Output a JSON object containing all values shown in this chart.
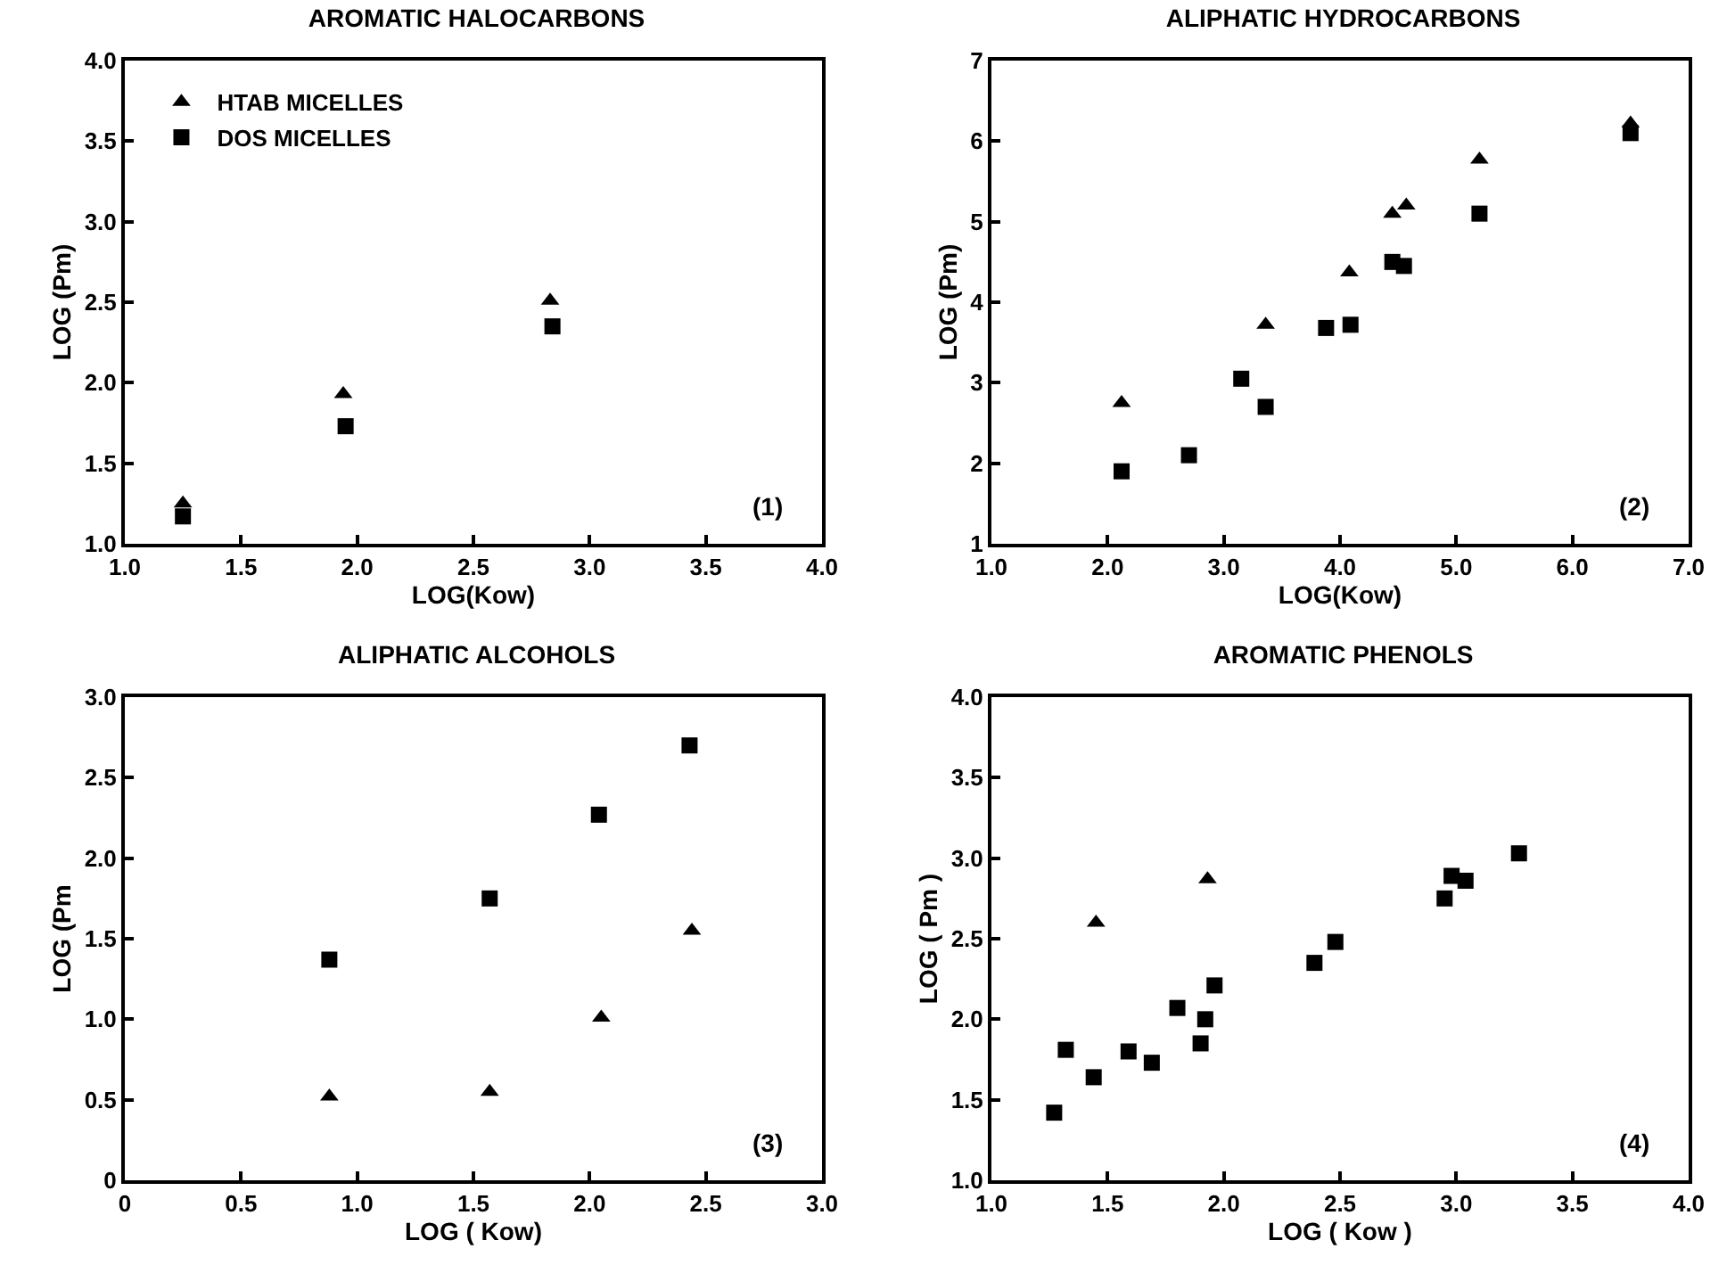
{
  "chart_data": [
    {
      "type": "scatter",
      "title": "AROMATIC HALOCARBONS",
      "xlabel": "LOG(Kow)",
      "ylabel": "LOG (Pm)",
      "annotations": [
        "(1)"
      ],
      "legend": "top left",
      "grid": false,
      "xlim": [
        1,
        4
      ],
      "xticks": [
        {
          "value": 1,
          "label": "1.0"
        },
        1.5,
        {
          "value": 2,
          "label": "2.0"
        },
        2.5,
        {
          "value": 3,
          "label": "3.0"
        },
        3.5,
        {
          "value": 4,
          "label": "4.0"
        }
      ],
      "ylim": [
        1,
        4
      ],
      "yticks": [
        {
          "value": 1,
          "label": "1.0"
        },
        1.5,
        {
          "value": 2,
          "label": "2.0"
        },
        2.5,
        {
          "value": 3,
          "label": "3.0"
        },
        3.5,
        {
          "value": 4,
          "label": "4.0"
        }
      ],
      "series": [
        {
          "name": "HTAB MICELLES",
          "color": "#000000",
          "marker": "triangle",
          "x": [
            1.25,
            1.94,
            2.83
          ],
          "values": [
            1.25,
            1.93,
            2.51
          ]
        },
        {
          "name": "DOS MICELLES",
          "color": "#000000",
          "marker": "square",
          "x": [
            1.25,
            1.95,
            2.84
          ],
          "values": [
            1.17,
            1.73,
            2.35
          ]
        }
      ]
    },
    {
      "type": "scatter",
      "title": "ALIPHATIC HYDROCARBONS",
      "xlabel": "LOG(Kow)",
      "ylabel": "LOG (Pm)",
      "annotations": [
        "(2)"
      ],
      "grid": false,
      "xlim": [
        1,
        7
      ],
      "xticks": [
        {
          "value": 1,
          "label": "1.0"
        },
        {
          "value": 2,
          "label": "2.0"
        },
        {
          "value": 3,
          "label": "3.0"
        },
        {
          "value": 4,
          "label": "4.0"
        },
        {
          "value": 5,
          "label": "5.0"
        },
        {
          "value": 6,
          "label": "6.0"
        },
        {
          "value": 7,
          "label": "7.0"
        }
      ],
      "ylim": [
        1,
        7
      ],
      "yticks": [
        1,
        2,
        3,
        4,
        5,
        6,
        7
      ],
      "series": [
        {
          "color": "#000000",
          "marker": "triangle",
          "x": [
            2.12,
            3.36,
            4.08,
            4.45,
            4.57,
            5.2,
            6.5
          ],
          "values": [
            2.75,
            3.72,
            4.37,
            5.1,
            5.2,
            5.77,
            6.22
          ]
        },
        {
          "color": "#000000",
          "marker": "square",
          "x": [
            2.12,
            2.7,
            3.15,
            3.36,
            3.88,
            4.09,
            4.45,
            4.55,
            5.2,
            6.5
          ],
          "values": [
            1.9,
            2.1,
            3.05,
            2.7,
            3.68,
            3.72,
            4.5,
            4.45,
            5.1,
            6.1
          ]
        }
      ]
    },
    {
      "type": "scatter",
      "title": "ALIPHATIC ALCOHOLS",
      "xlabel": "LOG ( Kow)",
      "ylabel": "LOG (Pm",
      "annotations": [
        "(3)"
      ],
      "grid": false,
      "xlim": [
        0,
        3
      ],
      "xticks": [
        0,
        0.5,
        {
          "value": 1,
          "label": "1.0"
        },
        1.5,
        {
          "value": 2,
          "label": "2.0"
        },
        2.5,
        {
          "value": 3,
          "label": "3.0"
        }
      ],
      "ylim": [
        0,
        3
      ],
      "yticks": [
        0,
        0.5,
        {
          "value": 1,
          "label": "1.0"
        },
        1.5,
        {
          "value": 2,
          "label": "2.0"
        },
        2.5,
        {
          "value": 3,
          "label": "3.0"
        }
      ],
      "series": [
        {
          "color": "#000000",
          "marker": "triangle",
          "x": [
            0.88,
            1.57,
            2.05,
            2.44
          ],
          "values": [
            0.52,
            0.55,
            1.01,
            1.55
          ]
        },
        {
          "color": "#000000",
          "marker": "square",
          "x": [
            0.88,
            1.57,
            2.04,
            2.43
          ],
          "values": [
            1.37,
            1.75,
            2.27,
            2.7
          ]
        }
      ]
    },
    {
      "type": "scatter",
      "title": "AROMATIC PHENOLS",
      "xlabel": "LOG ( Kow )",
      "ylabel": "LOG ( Pm )",
      "annotations": [
        "(4)"
      ],
      "grid": false,
      "xlim": [
        1,
        4
      ],
      "xticks": [
        {
          "value": 1,
          "label": "1.0"
        },
        1.5,
        {
          "value": 2,
          "label": "2.0"
        },
        2.5,
        {
          "value": 3,
          "label": "3.0"
        },
        3.5,
        {
          "value": 4,
          "label": "4.0"
        }
      ],
      "ylim": [
        1,
        4
      ],
      "yticks": [
        {
          "value": 1,
          "label": "1.0"
        },
        1.5,
        {
          "value": 2,
          "label": "2.0"
        },
        2.5,
        {
          "value": 3,
          "label": "3.0"
        },
        3.5,
        {
          "value": 4,
          "label": "4.0"
        }
      ],
      "series": [
        {
          "color": "#000000",
          "marker": "triangle",
          "x": [
            1.45,
            1.93
          ],
          "values": [
            2.6,
            2.87
          ]
        },
        {
          "color": "#000000",
          "marker": "square",
          "x": [
            1.27,
            1.32,
            1.44,
            1.59,
            1.69,
            1.8,
            1.9,
            1.92,
            1.96,
            2.39,
            2.48,
            2.95,
            2.98,
            3.04,
            3.27
          ],
          "values": [
            1.42,
            1.81,
            1.64,
            1.8,
            1.73,
            2.07,
            1.85,
            2.0,
            2.21,
            2.35,
            2.48,
            2.75,
            2.89,
            2.86,
            3.03
          ]
        }
      ]
    }
  ]
}
